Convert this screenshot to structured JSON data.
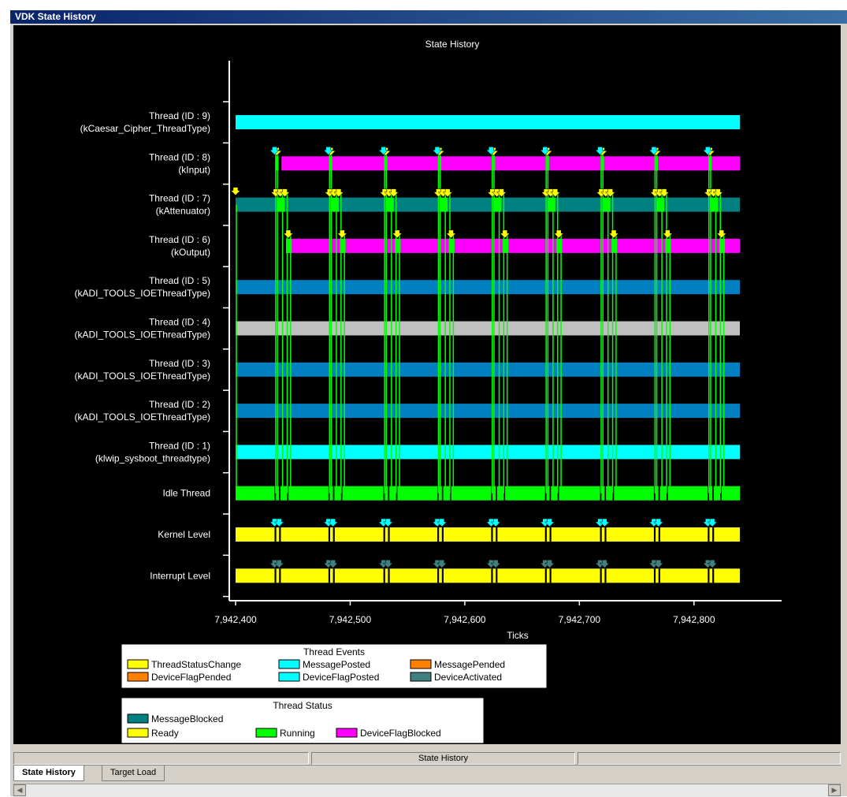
{
  "window": {
    "title": "VDK State History"
  },
  "statusbar": {
    "label": "State History"
  },
  "tabs": [
    {
      "label": "State History",
      "active": true
    },
    {
      "label": "Target Load",
      "active": false
    }
  ],
  "scroll": {
    "left_icon": "chevron-left-icon",
    "right_icon": "chevron-right-icon"
  },
  "chart_data": {
    "type": "timeline",
    "title": "State History",
    "xlabel": "Ticks",
    "xlim": [
      7942400,
      7942840
    ],
    "x_ticks": [
      7942400,
      7942500,
      7942600,
      7942700,
      7942800
    ],
    "x_tick_labels": [
      "7,942,400",
      "7,942,500",
      "7,942,600",
      "7,942,700",
      "7,942,800"
    ],
    "colors": {
      "ThreadStatusChange": "#ffff00",
      "MessagePosted": "#00ffff",
      "MessagePended": "#ff8000",
      "DeviceFlagPended": "#ff8000",
      "DeviceFlagPosted": "#00ffff",
      "DeviceActivated": "#408080",
      "MessageBlocked": "#008080",
      "Ready": "#ffff00",
      "Running": "#00ff00",
      "DeviceFlagBlocked": "#ff00ff",
      "Waiting": "#0080c0",
      "Suspended": "#c0c0c0",
      "Idle": "#00ffff"
    },
    "periods_x": [
      7942437,
      7942484,
      7942532,
      7942579,
      7942626,
      7942673,
      7942721,
      7942768,
      7942815
    ],
    "threads": [
      {
        "label1": "Thread (ID : 9)",
        "label2": "(kCaesar_Cipher_ThreadType)",
        "segments": [
          {
            "start": 7942400,
            "end": 7942840,
            "state": "Idle"
          }
        ],
        "marks": "none"
      },
      {
        "label1": "Thread (ID : 8)",
        "label2": "(kInput)",
        "segments": [
          {
            "start": 7942440,
            "end": 7942840,
            "state": "DeviceFlagBlocked"
          }
        ],
        "marks": "input"
      },
      {
        "label1": "Thread (ID : 7)",
        "label2": "(kAttenuator)",
        "segments": [
          {
            "start": 7942400,
            "end": 7942840,
            "state": "MessageBlocked"
          }
        ],
        "marks": "attenuator"
      },
      {
        "label1": "Thread (ID : 6)",
        "label2": "(kOutput)",
        "segments": [
          {
            "start": 7942445,
            "end": 7942840,
            "state": "DeviceFlagBlocked"
          }
        ],
        "marks": "output"
      },
      {
        "label1": "Thread (ID : 5)",
        "label2": "(kADI_TOOLS_IOEThreadType)",
        "segments": [
          {
            "start": 7942400,
            "end": 7942840,
            "state": "Waiting"
          }
        ],
        "marks": "none"
      },
      {
        "label1": "Thread (ID : 4)",
        "label2": "(kADI_TOOLS_IOEThreadType)",
        "segments": [
          {
            "start": 7942400,
            "end": 7942840,
            "state": "Suspended"
          }
        ],
        "marks": "none"
      },
      {
        "label1": "Thread (ID : 3)",
        "label2": "(kADI_TOOLS_IOEThreadType)",
        "segments": [
          {
            "start": 7942400,
            "end": 7942840,
            "state": "Waiting"
          }
        ],
        "marks": "none"
      },
      {
        "label1": "Thread (ID : 2)",
        "label2": "(kADI_TOOLS_IOEThreadType)",
        "segments": [
          {
            "start": 7942400,
            "end": 7942840,
            "state": "Waiting"
          }
        ],
        "marks": "none"
      },
      {
        "label1": "Thread (ID : 1)",
        "label2": "(klwip_sysboot_threadtype)",
        "segments": [
          {
            "start": 7942400,
            "end": 7942840,
            "state": "Idle"
          }
        ],
        "marks": "none"
      },
      {
        "label1": "Idle Thread",
        "label2": "",
        "segments": [
          {
            "start": 7942400,
            "end": 7942840,
            "state": "Running"
          }
        ],
        "marks": "idle"
      },
      {
        "label1": "Kernel Level",
        "label2": "",
        "segments": [
          {
            "start": 7942400,
            "end": 7942840,
            "state": "Ready"
          }
        ],
        "marks": "kernel"
      },
      {
        "label1": "Interrupt Level",
        "label2": "",
        "segments": [
          {
            "start": 7942400,
            "end": 7942840,
            "state": "Ready"
          }
        ],
        "marks": "interrupt"
      }
    ],
    "legend_events": {
      "title": "Thread Events",
      "items": [
        {
          "label": "ThreadStatusChange",
          "color": "#ffff00"
        },
        {
          "label": "MessagePosted",
          "color": "#00ffff"
        },
        {
          "label": "MessagePended",
          "color": "#ff8000"
        },
        {
          "label": "DeviceFlagPended",
          "color": "#ff8000"
        },
        {
          "label": "DeviceFlagPosted",
          "color": "#00ffff"
        },
        {
          "label": "DeviceActivated",
          "color": "#408080"
        }
      ]
    },
    "legend_status": {
      "title": "Thread Status",
      "items": [
        {
          "label": "MessageBlocked",
          "color": "#008080"
        },
        {
          "label": "Ready",
          "color": "#ffff00"
        },
        {
          "label": "Running",
          "color": "#00ff00"
        },
        {
          "label": "DeviceFlagBlocked",
          "color": "#ff00ff"
        }
      ]
    }
  }
}
